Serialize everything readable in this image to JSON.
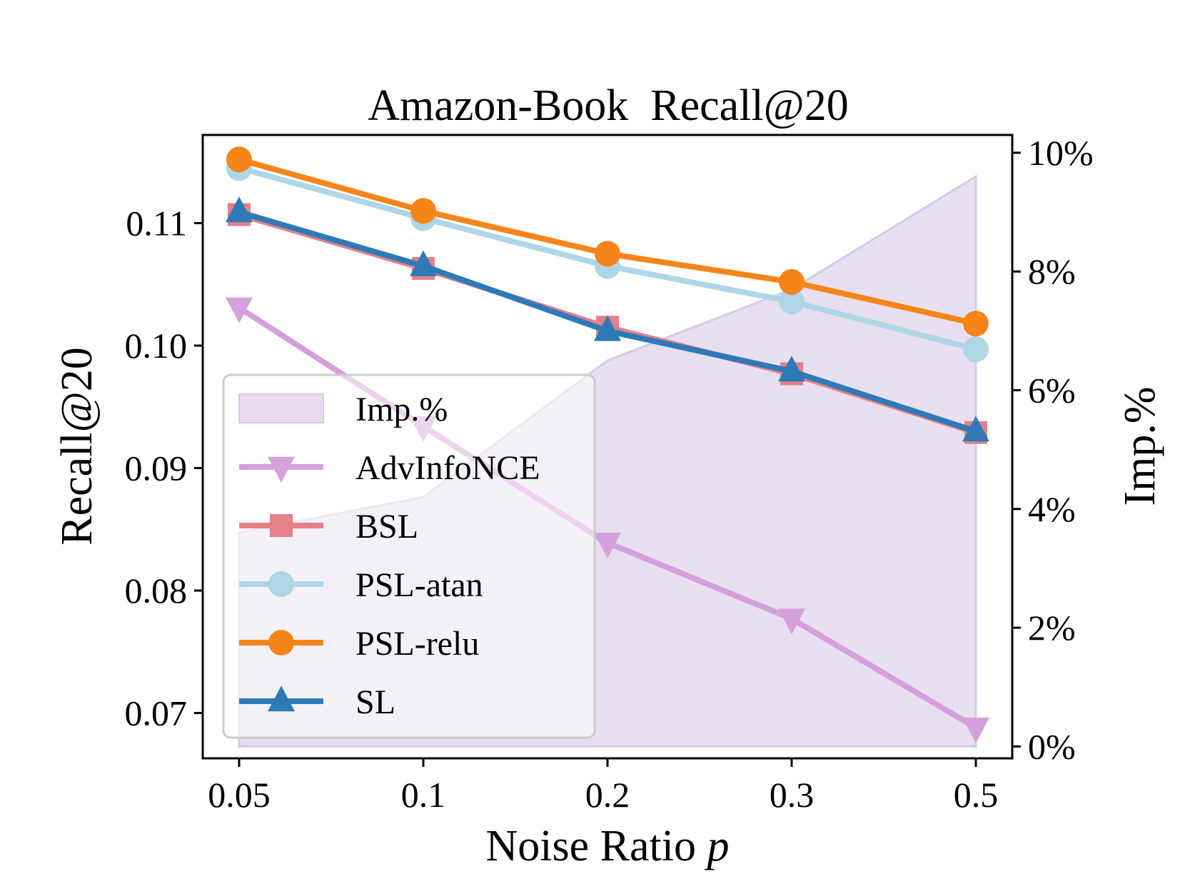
{
  "chart_data": {
    "type": "line",
    "title": "Amazon-Book  Recall@20",
    "xlabel": "Noise Ratio",
    "xlabel_var": "p",
    "ylabel": "Recall@20",
    "y2label": "Imp.%",
    "categories": [
      "0.05",
      "0.1",
      "0.2",
      "0.3",
      "0.5"
    ],
    "ylim": [
      0.0663,
      0.1172
    ],
    "yticks": [
      0.07,
      0.08,
      0.09,
      0.1,
      0.11
    ],
    "ytick_labels": [
      "0.07",
      "0.08",
      "0.09",
      "0.10",
      "0.11"
    ],
    "y2lim": [
      -0.2,
      10.3
    ],
    "y2ticks": [
      0,
      2,
      4,
      6,
      8,
      10
    ],
    "y2tick_labels": [
      "0%",
      "2%",
      "4%",
      "6%",
      "8%",
      "10%"
    ],
    "area": {
      "name": "Imp.%",
      "values": [
        3.6,
        4.2,
        6.5,
        7.7,
        9.6
      ],
      "color": "#e6dbef"
    },
    "series": [
      {
        "name": "AdvInfoNCE",
        "marker": "triangle-down",
        "color": "#d5a0dc",
        "values": [
          0.1031,
          0.0934,
          0.0839,
          0.0777,
          0.0688
        ]
      },
      {
        "name": "BSL",
        "marker": "square",
        "color": "#e57f8a",
        "values": [
          0.1107,
          0.1063,
          0.1015,
          0.0977,
          0.0929
        ]
      },
      {
        "name": "PSL-atan",
        "marker": "circle",
        "color": "#aed6e6",
        "values": [
          0.1145,
          0.1104,
          0.1065,
          0.1036,
          0.0997
        ]
      },
      {
        "name": "PSL-relu",
        "marker": "circle",
        "color": "#f58519",
        "values": [
          0.1152,
          0.111,
          0.1075,
          0.1052,
          0.1018
        ]
      },
      {
        "name": "SL",
        "marker": "triangle-up",
        "color": "#2e7ab8",
        "values": [
          0.1109,
          0.1065,
          0.1012,
          0.0979,
          0.093
        ]
      }
    ],
    "legend_order": [
      "Imp.%",
      "AdvInfoNCE",
      "BSL",
      "PSL-atan",
      "PSL-relu",
      "SL"
    ],
    "legend_colors": {
      "Imp.%": "#e6dbef",
      "AdvInfoNCE": "#d5a0dc",
      "BSL": "#e57f8a",
      "PSL-atan": "#aed6e6",
      "PSL-relu": "#f58519",
      "SL": "#2e7ab8"
    },
    "legend_placement": "lower-left",
    "grid": false
  }
}
